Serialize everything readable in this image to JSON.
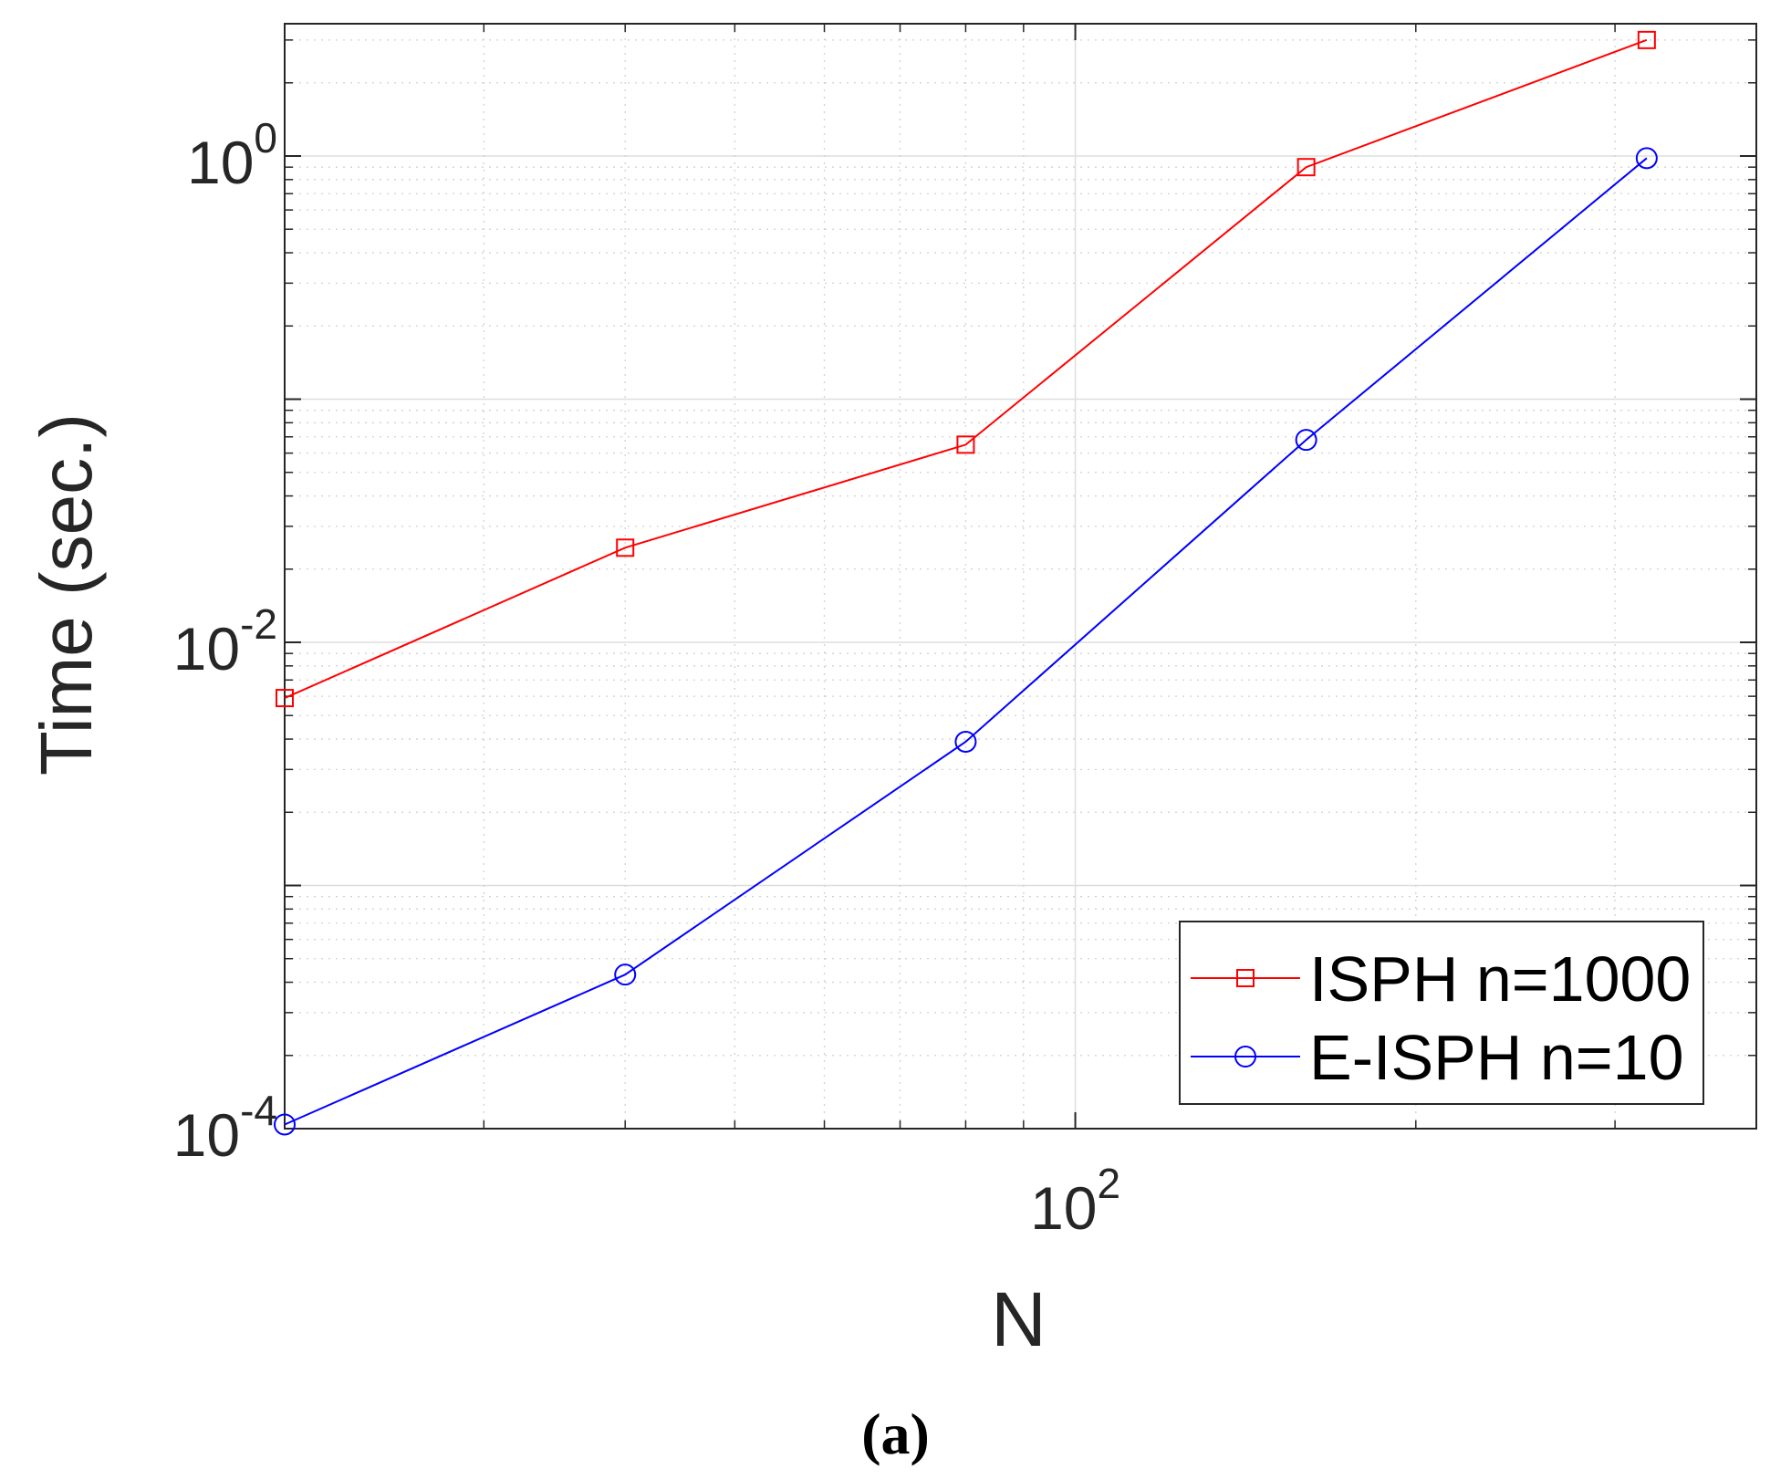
{
  "chart_data": {
    "type": "line",
    "xscale": "log",
    "yscale": "log",
    "xlabel": "N",
    "ylabel": "Time (sec.)",
    "xlim": [
      20,
      400
    ],
    "ylim": [
      0.0001,
      3.5
    ],
    "x_ticks": [
      {
        "value": 100,
        "base": "10",
        "exp": "2"
      }
    ],
    "y_ticks": [
      {
        "value": 0.0001,
        "base": "10",
        "exp": "-4"
      },
      {
        "value": 0.01,
        "base": "10",
        "exp": "-2"
      },
      {
        "value": 1,
        "base": "10",
        "exp": "0"
      }
    ],
    "grid": true,
    "legend_position": "bottom-right",
    "series": [
      {
        "name": "ISPH n=1000",
        "color": "#ff0000",
        "marker": "square",
        "x": [
          20,
          40,
          80,
          160,
          320
        ],
        "y": [
          0.0059,
          0.0245,
          0.065,
          0.9,
          3.0
        ]
      },
      {
        "name": "E-ISPH n=10",
        "color": "#0000ff",
        "marker": "circle",
        "x": [
          20,
          40,
          80,
          160,
          320
        ],
        "y": [
          0.000104,
          0.00043,
          0.0039,
          0.068,
          0.98
        ]
      }
    ]
  },
  "caption": "(a)"
}
